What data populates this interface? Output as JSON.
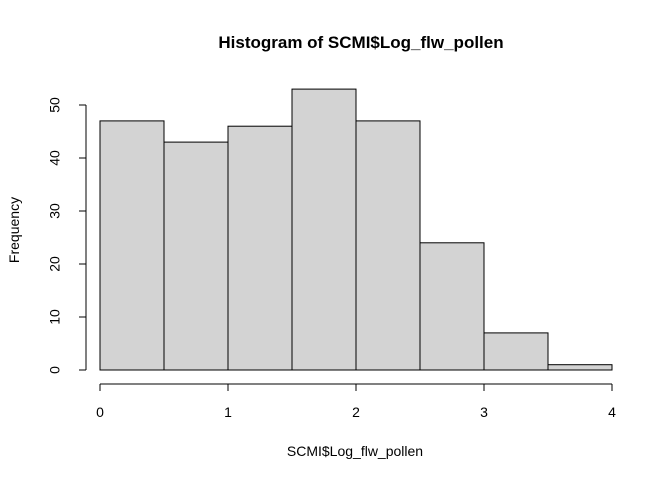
{
  "chart_data": {
    "type": "bar",
    "title": "Histogram of SCMI$Log_flw_pollen",
    "xlabel": "SCMI$Log_flw_pollen",
    "ylabel": "Frequency",
    "bins": [
      {
        "start": 0.0,
        "end": 0.5,
        "count": 47
      },
      {
        "start": 0.5,
        "end": 1.0,
        "count": 43
      },
      {
        "start": 1.0,
        "end": 1.5,
        "count": 46
      },
      {
        "start": 1.5,
        "end": 2.0,
        "count": 53
      },
      {
        "start": 2.0,
        "end": 2.5,
        "count": 47
      },
      {
        "start": 2.5,
        "end": 3.0,
        "count": 24
      },
      {
        "start": 3.0,
        "end": 3.5,
        "count": 7
      },
      {
        "start": 3.5,
        "end": 4.0,
        "count": 1
      }
    ],
    "x_ticks": [
      "0",
      "1",
      "2",
      "3",
      "4"
    ],
    "y_ticks": [
      "0",
      "10",
      "20",
      "30",
      "40",
      "50"
    ],
    "xlim": [
      0,
      4
    ],
    "ylim": [
      0,
      50
    ],
    "grid": false,
    "legend": "none",
    "colors": {
      "bar_fill": "#d3d3d3",
      "bar_stroke": "#000000",
      "axis": "#000000",
      "text": "#000000"
    }
  }
}
